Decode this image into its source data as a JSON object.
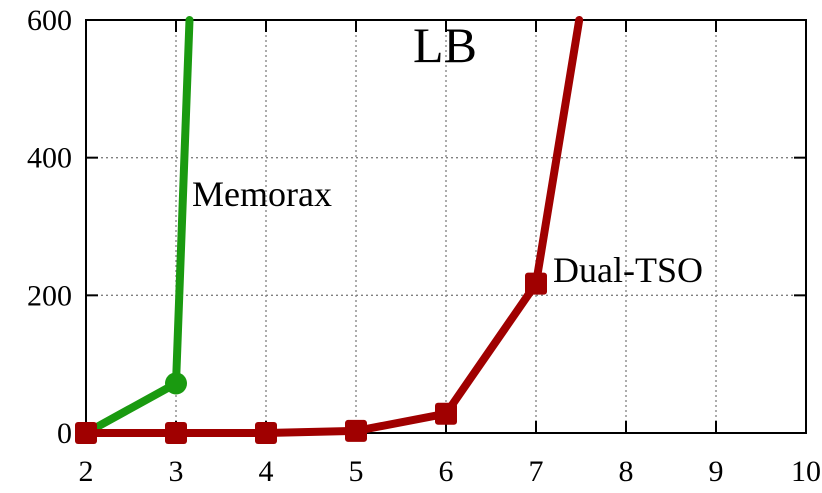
{
  "chart_data": {
    "type": "line",
    "title": "LB",
    "xlabel": "",
    "ylabel": "",
    "xlim": [
      2,
      10
    ],
    "ylim": [
      0,
      600
    ],
    "x_ticks": [
      "2",
      "3",
      "4",
      "5",
      "6",
      "7",
      "8",
      "9",
      "10"
    ],
    "y_ticks": [
      "0",
      "200",
      "400",
      "600"
    ],
    "grid": true,
    "legend": "none",
    "series": [
      {
        "name": "Memorax",
        "color": "#1a9a10",
        "marker": "circle",
        "points": [
          [
            2,
            0
          ],
          [
            3,
            72
          ]
        ],
        "tail_to": [
          3.15,
          600
        ]
      },
      {
        "name": "Dual-TSO",
        "color": "#a00000",
        "marker": "square",
        "points": [
          [
            2,
            0
          ],
          [
            3,
            0
          ],
          [
            4,
            0
          ],
          [
            5,
            3
          ],
          [
            6,
            28
          ],
          [
            7,
            217
          ]
        ],
        "tail_to": [
          7.48,
          600
        ]
      }
    ]
  }
}
